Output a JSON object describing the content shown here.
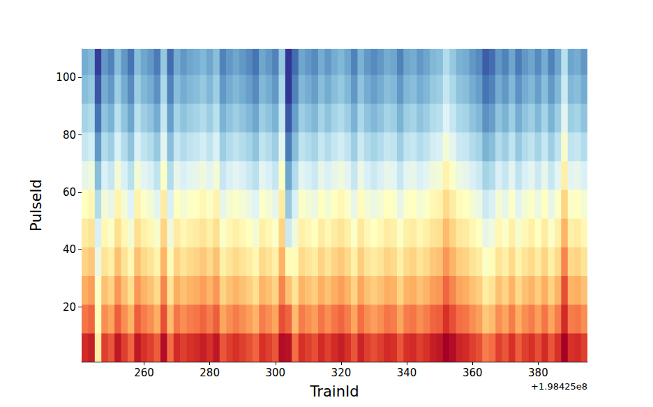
{
  "chart_data": {
    "type": "heatmap",
    "x_label": "TrainId",
    "y_label": "PulseId",
    "x_offset_label": "+1.98425e8",
    "xlim": [
      241,
      395
    ],
    "xticks": [
      260,
      280,
      300,
      320,
      340,
      360,
      380
    ],
    "ylim": [
      1,
      110
    ],
    "yticks": [
      20,
      40,
      60,
      80,
      100
    ],
    "color_range": [
      1.5,
      9.5
    ],
    "grid": false,
    "x_edges": [
      241,
      243,
      245,
      247,
      249,
      251,
      253,
      255,
      257,
      259,
      261,
      263,
      265,
      267,
      269,
      271,
      273,
      275,
      277,
      279,
      281,
      283,
      285,
      287,
      289,
      291,
      293,
      295,
      297,
      299,
      301,
      303,
      305,
      307,
      309,
      311,
      313,
      315,
      317,
      319,
      321,
      323,
      325,
      327,
      329,
      331,
      333,
      335,
      337,
      339,
      341,
      343,
      345,
      347,
      349,
      351,
      353,
      355,
      357,
      359,
      361,
      363,
      365,
      367,
      369,
      371,
      373,
      375,
      377,
      379,
      381,
      383,
      385,
      387,
      389,
      391,
      393,
      395
    ],
    "y_edges": [
      1,
      11,
      21,
      31,
      41,
      51,
      61,
      71,
      81,
      91,
      101,
      111
    ],
    "cells": [
      [
        8.8,
        9.0,
        6.0,
        8.5,
        8.2,
        9.1,
        8.5,
        8.0,
        9.1,
        8.7,
        8.5,
        8.1,
        9.3,
        7.9,
        8.8,
        8.5,
        8.7,
        8.8,
        9.0,
        8.7,
        9.1,
        8.2,
        8.5,
        8.7,
        8.5,
        8.3,
        8.0,
        8.7,
        8.5,
        8.2,
        9.3,
        9.2,
        7.9,
        8.7,
        8.5,
        8.3,
        8.8,
        8.5,
        8.8,
        9.0,
        8.7,
        8.2,
        8.9,
        8.5,
        8.3,
        8.5,
        8.8,
        8.7,
        8.2,
        8.7,
        8.8,
        8.5,
        8.7,
        9.0,
        9.1,
        9.7,
        9.3,
        8.9,
        8.8,
        8.5,
        8.3,
        7.7,
        7.9,
        8.5,
        8.2,
        8.7,
        8.1,
        8.5,
        8.7,
        8.3,
        8.8,
        8.2,
        8.7,
        9.8,
        8.7,
        8.8,
        8.5
      ],
      [
        7.8,
        8.0,
        5.6,
        7.5,
        7.2,
        8.1,
        7.5,
        7.0,
        8.1,
        7.7,
        7.5,
        7.1,
        8.3,
        6.9,
        7.8,
        7.5,
        7.7,
        7.8,
        8.0,
        7.7,
        8.1,
        7.2,
        7.5,
        7.7,
        7.5,
        7.3,
        7.0,
        7.7,
        7.5,
        7.2,
        8.3,
        8.0,
        6.9,
        7.7,
        7.5,
        7.3,
        7.8,
        7.5,
        7.8,
        8.0,
        7.7,
        7.2,
        7.9,
        7.5,
        7.3,
        7.5,
        7.8,
        7.7,
        7.2,
        7.7,
        7.8,
        7.5,
        7.7,
        8.0,
        8.1,
        8.7,
        8.3,
        7.9,
        7.8,
        7.5,
        7.3,
        6.7,
        6.9,
        7.5,
        7.2,
        7.7,
        7.1,
        7.5,
        7.7,
        7.3,
        7.8,
        7.2,
        7.7,
        8.8,
        7.7,
        7.8,
        7.5
      ],
      [
        7.1,
        7.3,
        5.4,
        6.8,
        6.5,
        7.4,
        6.8,
        6.3,
        7.4,
        7.0,
        6.8,
        6.4,
        7.6,
        6.2,
        7.1,
        6.8,
        7.0,
        7.1,
        7.3,
        7.0,
        7.4,
        6.5,
        6.8,
        7.0,
        6.8,
        6.6,
        6.3,
        7.0,
        6.8,
        6.5,
        7.6,
        6.8,
        6.2,
        7.0,
        6.8,
        6.6,
        7.1,
        6.8,
        7.1,
        7.3,
        7.0,
        6.5,
        7.2,
        6.8,
        6.6,
        6.8,
        7.1,
        7.0,
        6.5,
        7.0,
        7.1,
        6.8,
        7.0,
        7.3,
        7.4,
        8.0,
        7.6,
        7.2,
        7.1,
        6.8,
        6.6,
        6.0,
        6.2,
        6.8,
        6.5,
        7.0,
        6.4,
        6.8,
        7.0,
        6.6,
        7.1,
        6.5,
        7.0,
        8.3,
        7.0,
        7.1,
        6.8
      ],
      [
        6.5,
        6.7,
        5.0,
        6.2,
        5.9,
        6.8,
        6.2,
        5.7,
        6.8,
        6.4,
        6.2,
        5.8,
        7.0,
        5.6,
        6.5,
        6.2,
        6.4,
        6.5,
        6.7,
        6.4,
        6.8,
        5.9,
        6.2,
        6.4,
        6.2,
        6.0,
        5.7,
        6.4,
        6.2,
        5.9,
        7.0,
        5.6,
        5.6,
        6.4,
        6.2,
        6.0,
        6.5,
        6.2,
        6.5,
        6.7,
        6.4,
        5.9,
        6.6,
        6.2,
        6.0,
        6.2,
        6.5,
        6.4,
        5.9,
        6.4,
        6.5,
        6.2,
        6.4,
        6.7,
        6.8,
        7.4,
        7.0,
        6.6,
        6.5,
        6.2,
        6.0,
        5.4,
        5.6,
        6.2,
        5.9,
        6.4,
        5.8,
        6.2,
        6.4,
        6.0,
        6.5,
        5.9,
        6.4,
        7.6,
        6.4,
        6.5,
        6.2
      ],
      [
        6.0,
        6.2,
        4.6,
        5.7,
        5.4,
        6.3,
        5.7,
        5.2,
        6.3,
        5.9,
        5.7,
        5.3,
        6.5,
        5.1,
        6.0,
        5.7,
        5.9,
        6.0,
        6.2,
        5.9,
        6.3,
        5.4,
        5.7,
        5.9,
        5.7,
        5.5,
        5.2,
        5.9,
        5.7,
        5.4,
        6.5,
        4.4,
        5.1,
        5.9,
        5.7,
        5.5,
        6.0,
        5.7,
        6.0,
        6.2,
        5.9,
        5.4,
        6.1,
        5.7,
        5.5,
        5.7,
        6.0,
        5.9,
        5.4,
        5.9,
        6.0,
        5.7,
        5.9,
        6.2,
        6.3,
        6.9,
        6.5,
        6.1,
        6.0,
        5.7,
        5.5,
        4.9,
        5.1,
        5.7,
        5.4,
        5.9,
        5.3,
        5.7,
        5.9,
        5.5,
        6.0,
        5.4,
        5.9,
        7.0,
        5.9,
        6.0,
        5.7
      ],
      [
        5.5,
        5.7,
        4.0,
        5.2,
        4.9,
        5.8,
        5.2,
        4.7,
        5.8,
        5.4,
        5.2,
        4.8,
        6.0,
        4.6,
        5.5,
        5.2,
        5.4,
        5.5,
        5.7,
        5.4,
        5.8,
        4.9,
        5.2,
        5.4,
        5.2,
        5.0,
        4.7,
        5.4,
        5.2,
        4.9,
        6.0,
        3.6,
        4.6,
        5.4,
        5.2,
        5.0,
        5.5,
        5.2,
        5.5,
        5.7,
        5.4,
        4.9,
        5.6,
        5.2,
        5.0,
        5.2,
        5.5,
        5.4,
        4.9,
        5.4,
        5.5,
        5.2,
        5.4,
        5.7,
        5.8,
        6.4,
        6.0,
        5.6,
        5.5,
        5.2,
        5.0,
        4.4,
        4.6,
        5.2,
        4.9,
        5.4,
        4.8,
        5.2,
        5.4,
        5.0,
        5.5,
        4.9,
        5.4,
        6.5,
        5.4,
        5.5,
        5.2
      ],
      [
        4.9,
        5.1,
        3.4,
        4.6,
        4.3,
        5.2,
        4.6,
        4.1,
        5.2,
        4.8,
        4.6,
        4.2,
        5.4,
        4.0,
        4.9,
        4.6,
        4.8,
        4.9,
        5.1,
        4.8,
        5.2,
        4.3,
        4.6,
        4.8,
        4.6,
        4.4,
        4.1,
        4.8,
        4.6,
        4.3,
        5.4,
        3.0,
        4.0,
        4.8,
        4.6,
        4.4,
        4.9,
        4.6,
        4.9,
        5.1,
        4.8,
        4.3,
        5.0,
        4.6,
        4.4,
        4.6,
        4.9,
        4.8,
        4.3,
        4.8,
        4.9,
        4.6,
        4.8,
        5.1,
        5.2,
        5.8,
        5.4,
        5.0,
        4.9,
        4.6,
        4.4,
        3.8,
        4.0,
        4.6,
        4.3,
        4.8,
        4.2,
        4.6,
        4.8,
        4.4,
        4.9,
        4.3,
        4.8,
        5.9,
        4.8,
        4.9,
        4.6
      ],
      [
        4.3,
        4.5,
        2.8,
        4.0,
        3.7,
        4.6,
        4.0,
        3.5,
        4.6,
        4.2,
        4.0,
        3.6,
        4.8,
        3.4,
        4.3,
        4.0,
        4.2,
        4.3,
        4.5,
        4.2,
        4.6,
        3.7,
        4.0,
        4.2,
        4.0,
        3.8,
        3.5,
        4.2,
        4.0,
        3.7,
        4.8,
        2.4,
        3.4,
        4.2,
        4.0,
        3.8,
        4.3,
        4.0,
        4.3,
        4.5,
        4.2,
        3.7,
        4.4,
        4.0,
        3.8,
        4.0,
        4.3,
        4.2,
        3.7,
        4.2,
        4.3,
        4.0,
        4.2,
        4.5,
        4.6,
        5.2,
        4.8,
        4.4,
        4.3,
        4.0,
        3.8,
        3.2,
        3.4,
        4.0,
        3.7,
        4.2,
        3.6,
        4.0,
        4.2,
        3.8,
        4.3,
        3.7,
        4.2,
        5.3,
        4.2,
        4.3,
        4.0
      ],
      [
        3.8,
        4.0,
        2.3,
        3.5,
        3.2,
        4.1,
        3.5,
        3.0,
        4.1,
        3.7,
        3.5,
        3.1,
        4.3,
        2.9,
        3.8,
        3.5,
        3.7,
        3.8,
        4.0,
        3.7,
        4.1,
        3.2,
        3.5,
        3.7,
        3.5,
        3.3,
        3.0,
        3.7,
        3.5,
        3.2,
        4.3,
        1.9,
        2.9,
        3.7,
        3.5,
        3.3,
        3.8,
        3.5,
        3.8,
        4.0,
        3.7,
        3.2,
        3.9,
        3.5,
        3.3,
        3.5,
        3.8,
        3.7,
        3.2,
        3.7,
        3.8,
        3.5,
        3.7,
        4.0,
        4.1,
        4.7,
        4.3,
        3.9,
        3.8,
        3.5,
        3.3,
        2.7,
        2.9,
        3.5,
        3.2,
        3.7,
        3.1,
        3.5,
        3.7,
        3.3,
        3.8,
        3.2,
        3.7,
        4.8,
        3.7,
        3.8,
        3.5
      ],
      [
        3.4,
        3.6,
        1.9,
        3.1,
        2.8,
        3.7,
        3.1,
        2.6,
        3.7,
        3.3,
        3.1,
        2.7,
        3.9,
        2.5,
        3.4,
        3.1,
        3.3,
        3.4,
        3.6,
        3.3,
        3.7,
        2.8,
        3.1,
        3.3,
        3.1,
        2.9,
        2.6,
        3.3,
        3.1,
        2.8,
        3.9,
        1.5,
        2.5,
        3.3,
        3.1,
        2.9,
        3.4,
        3.1,
        3.4,
        3.6,
        3.3,
        2.8,
        3.5,
        3.1,
        2.9,
        3.1,
        3.4,
        3.3,
        2.8,
        3.3,
        3.4,
        3.1,
        3.3,
        3.6,
        3.7,
        4.3,
        3.9,
        3.5,
        3.4,
        3.1,
        2.9,
        2.3,
        2.5,
        3.1,
        2.8,
        3.3,
        2.7,
        3.1,
        3.3,
        2.9,
        3.4,
        2.8,
        3.3,
        4.4,
        3.3,
        3.4,
        3.1
      ],
      [
        3.1,
        3.3,
        1.6,
        2.8,
        2.5,
        3.4,
        2.8,
        2.3,
        3.4,
        3.0,
        2.8,
        2.4,
        3.6,
        2.2,
        3.1,
        2.8,
        3.0,
        3.1,
        3.3,
        3.0,
        3.4,
        2.5,
        2.8,
        3.0,
        2.8,
        2.6,
        2.3,
        3.0,
        2.8,
        2.5,
        3.6,
        1.2,
        2.2,
        3.0,
        2.8,
        2.6,
        3.1,
        2.8,
        3.1,
        3.3,
        3.0,
        2.5,
        3.2,
        2.8,
        2.6,
        2.8,
        3.1,
        3.0,
        2.5,
        3.0,
        3.1,
        2.8,
        3.0,
        3.3,
        3.4,
        4.0,
        3.6,
        3.2,
        3.1,
        2.8,
        2.6,
        2.0,
        2.2,
        2.8,
        2.5,
        3.0,
        2.4,
        2.8,
        3.0,
        2.6,
        3.1,
        2.5,
        3.0,
        4.1,
        3.0,
        3.1,
        2.8
      ]
    ]
  }
}
